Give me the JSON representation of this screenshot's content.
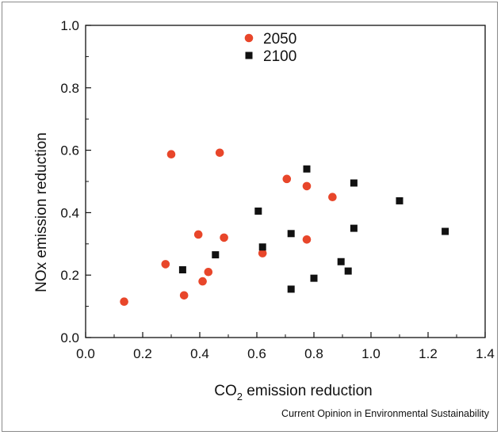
{
  "chart_data": {
    "type": "scatter",
    "xlabel": "CO",
    "xlabel_sub": "2",
    "xlabel_rest": " emission reduction",
    "ylabel": "NOx emission reduction",
    "xlim": [
      0.0,
      1.4
    ],
    "ylim": [
      0.0,
      1.0
    ],
    "xticks": [
      "0.0",
      "0.2",
      "0.4",
      "0.6",
      "0.8",
      "1.0",
      "1.2",
      "1.4"
    ],
    "yticks": [
      "0.0",
      "0.2",
      "0.4",
      "0.6",
      "0.8",
      "1.0"
    ],
    "grid": false,
    "legend_position": "top-center",
    "series": [
      {
        "name": "2050",
        "color": "#e8462a",
        "marker": "circle",
        "points": [
          {
            "x": 0.135,
            "y": 0.115
          },
          {
            "x": 0.28,
            "y": 0.235
          },
          {
            "x": 0.3,
            "y": 0.587
          },
          {
            "x": 0.345,
            "y": 0.135
          },
          {
            "x": 0.395,
            "y": 0.33
          },
          {
            "x": 0.41,
            "y": 0.18
          },
          {
            "x": 0.43,
            "y": 0.21
          },
          {
            "x": 0.47,
            "y": 0.592
          },
          {
            "x": 0.485,
            "y": 0.32
          },
          {
            "x": 0.62,
            "y": 0.27
          },
          {
            "x": 0.705,
            "y": 0.508
          },
          {
            "x": 0.775,
            "y": 0.485
          },
          {
            "x": 0.775,
            "y": 0.314
          },
          {
            "x": 0.865,
            "y": 0.45
          }
        ]
      },
      {
        "name": "2100",
        "color": "#111111",
        "marker": "square",
        "points": [
          {
            "x": 0.34,
            "y": 0.217
          },
          {
            "x": 0.455,
            "y": 0.265
          },
          {
            "x": 0.605,
            "y": 0.405
          },
          {
            "x": 0.62,
            "y": 0.29
          },
          {
            "x": 0.72,
            "y": 0.333
          },
          {
            "x": 0.72,
            "y": 0.155
          },
          {
            "x": 0.775,
            "y": 0.54
          },
          {
            "x": 0.8,
            "y": 0.19
          },
          {
            "x": 0.895,
            "y": 0.243
          },
          {
            "x": 0.92,
            "y": 0.213
          },
          {
            "x": 0.94,
            "y": 0.495
          },
          {
            "x": 0.94,
            "y": 0.35
          },
          {
            "x": 1.1,
            "y": 0.438
          },
          {
            "x": 1.26,
            "y": 0.34
          }
        ]
      }
    ]
  },
  "credit": "Current Opinion in Environmental Sustainability"
}
